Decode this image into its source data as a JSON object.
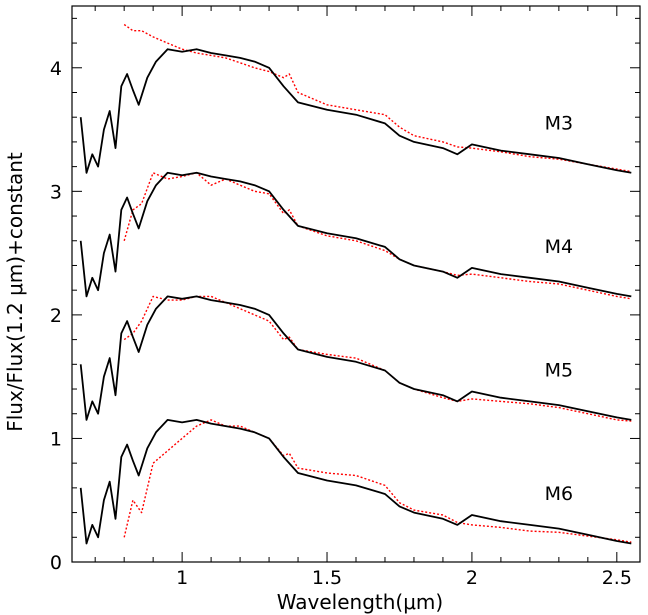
{
  "chart_data": {
    "type": "line",
    "title": "",
    "xlabel": "Wavelength(μm)",
    "ylabel": "Flux/Flux(1.2 μm)+constant",
    "xlim": [
      0.62,
      2.58
    ],
    "ylim": [
      0.0,
      4.5
    ],
    "x_ticks": [
      1,
      1.5,
      2,
      2.5
    ],
    "x_tick_labels": [
      "1",
      "1.5",
      "2",
      "2.5"
    ],
    "y_ticks": [
      0,
      1,
      2,
      3,
      4
    ],
    "y_tick_labels": [
      "0",
      "1",
      "2",
      "3",
      "4"
    ],
    "grid": false,
    "colors": {
      "model": "#000000",
      "observed": "#ff0000"
    },
    "series_labels": [
      "M3",
      "M4",
      "M5",
      "M6"
    ],
    "model_x": [
      0.65,
      0.67,
      0.69,
      0.71,
      0.73,
      0.75,
      0.77,
      0.79,
      0.81,
      0.83,
      0.85,
      0.88,
      0.91,
      0.95,
      1.0,
      1.05,
      1.1,
      1.15,
      1.2,
      1.25,
      1.3,
      1.35,
      1.4,
      1.5,
      1.6,
      1.7,
      1.75,
      1.8,
      1.9,
      1.95,
      2.0,
      2.1,
      2.2,
      2.3,
      2.4,
      2.5,
      2.55
    ],
    "model_y": [
      0.6,
      0.15,
      0.3,
      0.2,
      0.5,
      0.65,
      0.35,
      0.85,
      0.95,
      0.82,
      0.7,
      0.92,
      1.05,
      1.15,
      1.13,
      1.15,
      1.12,
      1.1,
      1.08,
      1.05,
      1.0,
      0.85,
      0.72,
      0.66,
      0.62,
      0.55,
      0.45,
      0.4,
      0.35,
      0.3,
      0.38,
      0.33,
      0.3,
      0.27,
      0.22,
      0.17,
      0.15
    ],
    "observed_x": [
      0.8,
      0.83,
      0.86,
      0.9,
      0.95,
      1.0,
      1.05,
      1.1,
      1.15,
      1.2,
      1.25,
      1.3,
      1.35,
      1.37,
      1.4,
      1.5,
      1.6,
      1.7,
      1.75,
      1.8,
      1.9,
      1.95,
      2.0,
      2.1,
      2.2,
      2.3,
      2.4,
      2.5,
      2.55
    ],
    "offsets": [
      3.0,
      2.0,
      1.0,
      0.0
    ],
    "observed_by_series": [
      [
        1.35,
        1.3,
        1.3,
        1.25,
        1.2,
        1.15,
        1.12,
        1.1,
        1.08,
        1.04,
        1.0,
        0.97,
        0.92,
        0.95,
        0.8,
        0.7,
        0.66,
        0.62,
        0.52,
        0.45,
        0.4,
        0.36,
        0.35,
        0.32,
        0.28,
        0.26,
        0.22,
        0.18,
        0.16
      ],
      [
        0.6,
        0.85,
        0.9,
        1.15,
        1.1,
        1.12,
        1.15,
        1.05,
        1.1,
        1.05,
        1.0,
        0.98,
        0.82,
        0.85,
        0.72,
        0.64,
        0.6,
        0.52,
        0.45,
        0.4,
        0.35,
        0.32,
        0.33,
        0.3,
        0.27,
        0.25,
        0.2,
        0.15,
        0.13
      ],
      [
        0.8,
        0.85,
        0.95,
        1.15,
        1.12,
        1.12,
        1.15,
        1.15,
        1.1,
        1.05,
        1.0,
        0.95,
        0.8,
        0.82,
        0.72,
        0.68,
        0.65,
        0.55,
        0.45,
        0.4,
        0.33,
        0.3,
        0.32,
        0.3,
        0.28,
        0.25,
        0.2,
        0.15,
        0.14
      ],
      [
        0.2,
        0.5,
        0.4,
        0.8,
        0.9,
        1.0,
        1.1,
        1.15,
        1.1,
        1.1,
        1.05,
        1.0,
        0.86,
        0.88,
        0.76,
        0.72,
        0.7,
        0.62,
        0.48,
        0.42,
        0.38,
        0.32,
        0.3,
        0.28,
        0.25,
        0.24,
        0.21,
        0.18,
        0.16
      ]
    ]
  }
}
